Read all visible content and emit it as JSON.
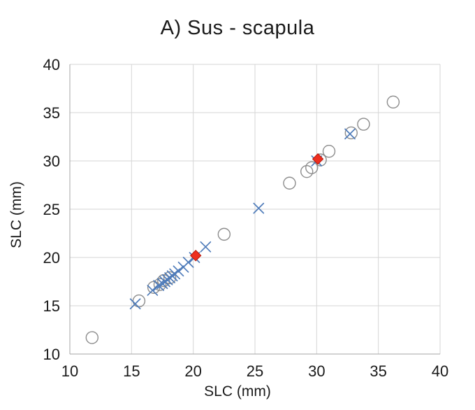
{
  "chart_data": {
    "type": "scatter",
    "title": "A) Sus - scapula",
    "xlabel": "SLC (mm)",
    "ylabel": "SLC (mm)",
    "xlim": [
      10,
      40
    ],
    "ylim": [
      10,
      40
    ],
    "xticks": [
      10,
      15,
      20,
      25,
      30,
      35,
      40
    ],
    "yticks": [
      10,
      15,
      20,
      25,
      30,
      35,
      40
    ],
    "grid": true,
    "colors": {
      "grid": "#d6d6d6",
      "axis": "#a6a6a6",
      "text": "#1a1a1a"
    },
    "series": [
      {
        "name": "open-circle-observations",
        "marker": "circle",
        "color": "#8c8c8c",
        "points": [
          [
            11.8,
            11.7
          ],
          [
            15.6,
            15.5
          ],
          [
            16.8,
            16.9
          ],
          [
            17.3,
            17.2
          ],
          [
            17.6,
            17.6
          ],
          [
            18.1,
            17.9
          ],
          [
            22.5,
            22.4
          ],
          [
            27.8,
            27.7
          ],
          [
            29.2,
            28.9
          ],
          [
            29.6,
            29.3
          ],
          [
            30.3,
            30.1
          ],
          [
            31.0,
            31.0
          ],
          [
            32.8,
            32.9
          ],
          [
            33.8,
            33.8
          ],
          [
            36.2,
            36.1
          ]
        ]
      },
      {
        "name": "cross-observations",
        "marker": "x",
        "color": "#4f7cba",
        "points": [
          [
            15.3,
            15.2
          ],
          [
            16.7,
            16.6
          ],
          [
            17.2,
            17.1
          ],
          [
            17.5,
            17.3
          ],
          [
            17.7,
            17.5
          ],
          [
            17.9,
            17.7
          ],
          [
            18.1,
            17.9
          ],
          [
            18.3,
            18.1
          ],
          [
            18.5,
            18.3
          ],
          [
            18.8,
            18.6
          ],
          [
            19.2,
            19.0
          ],
          [
            19.6,
            19.5
          ],
          [
            20.1,
            20.0
          ],
          [
            21.0,
            21.1
          ],
          [
            25.3,
            25.1
          ],
          [
            30.0,
            30.0
          ],
          [
            32.7,
            32.8
          ]
        ]
      },
      {
        "name": "mean-diamonds",
        "marker": "diamond",
        "color": "#ee2e1f",
        "edge": "#b9170a",
        "points": [
          [
            20.2,
            20.2
          ],
          [
            30.1,
            30.2
          ]
        ]
      }
    ]
  }
}
